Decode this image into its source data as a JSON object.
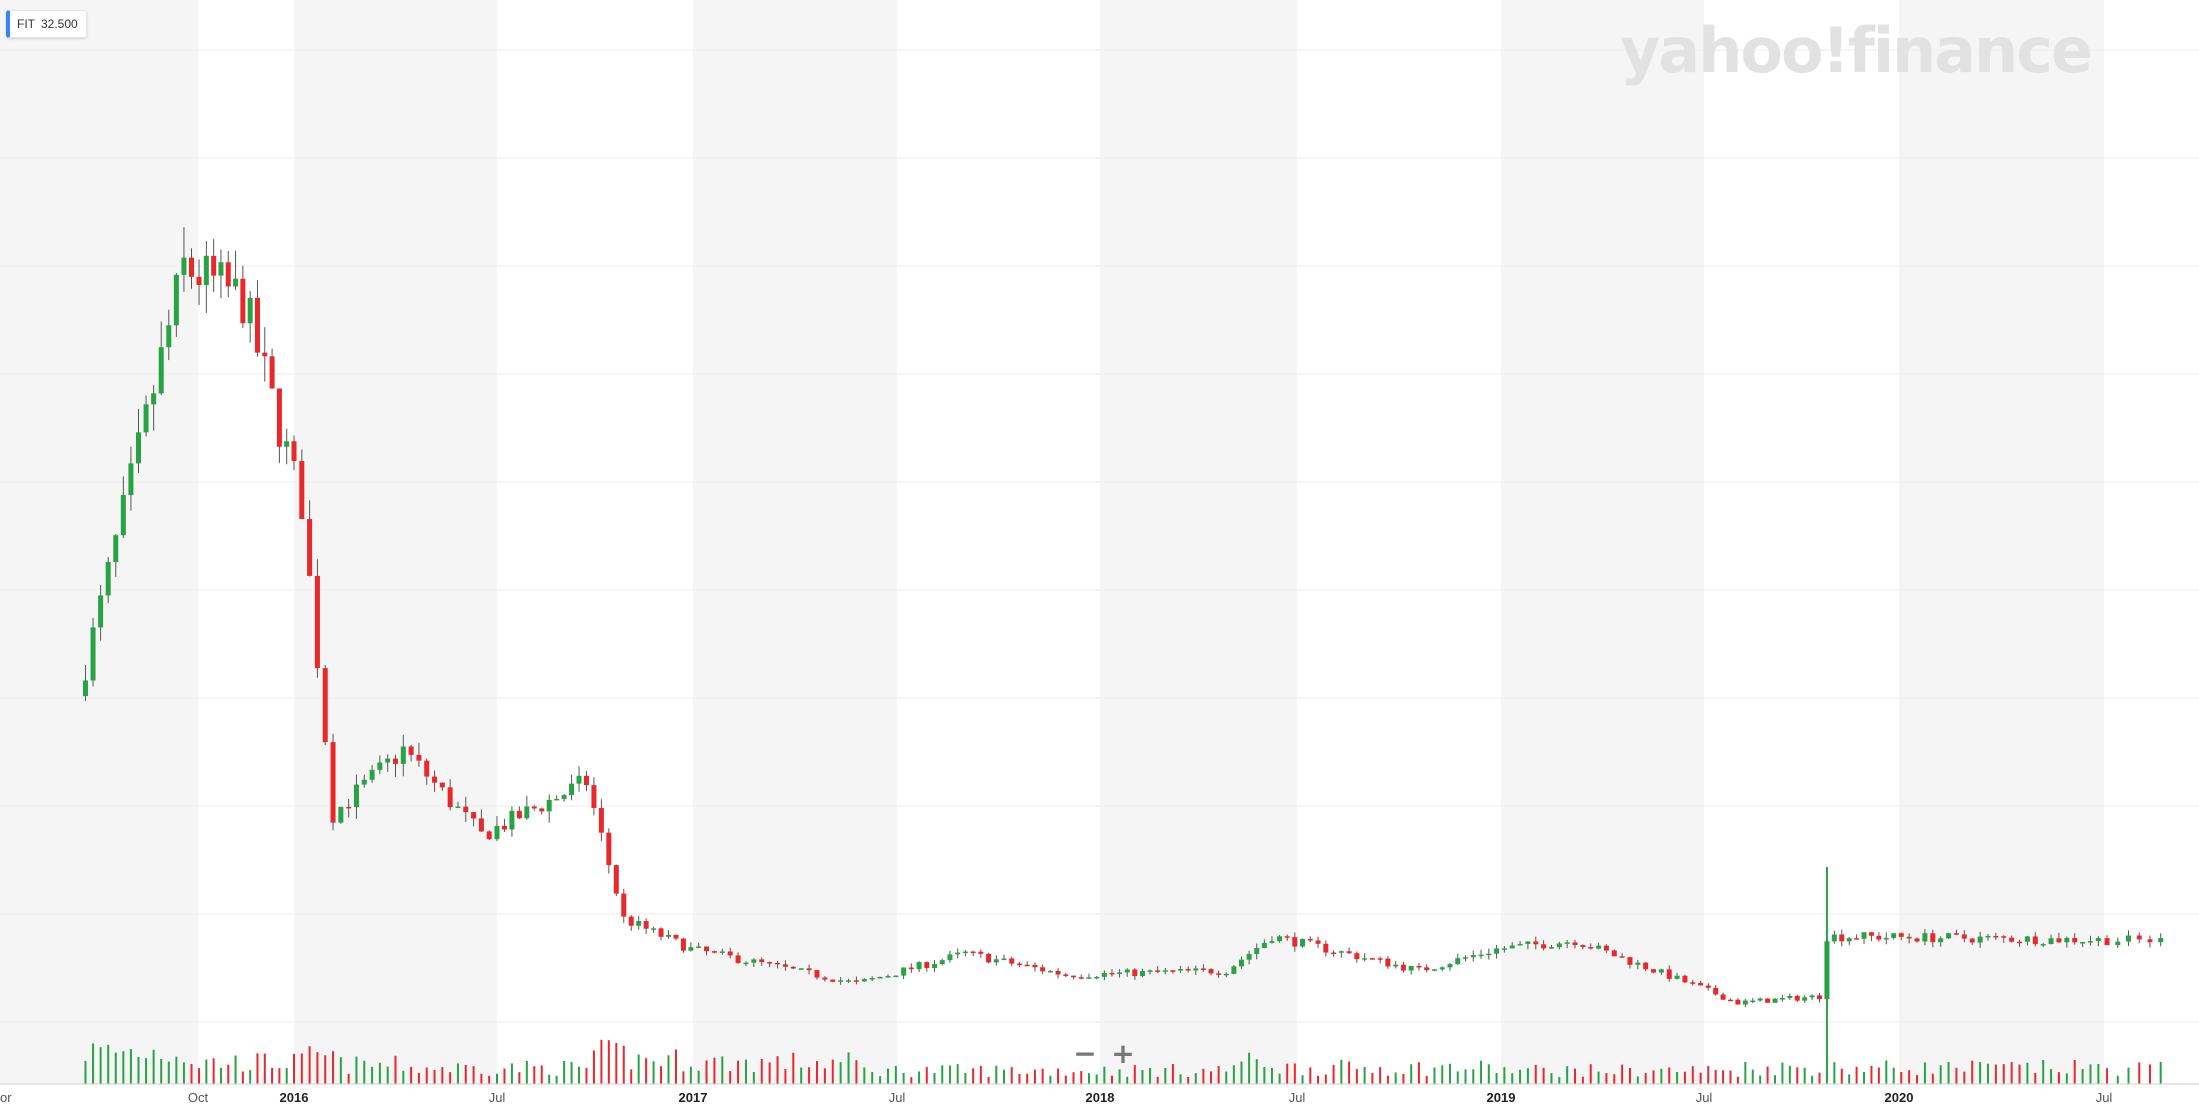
{
  "legend": {
    "symbol": "FIT",
    "price": "32.500"
  },
  "logo_text": "yahoo!finance",
  "zoom": {
    "minus": "−",
    "plus": "+"
  },
  "colors": {
    "up": "#27a345",
    "down": "#e8282b",
    "band": "#f5f5f5",
    "grid": "#eeeeee"
  },
  "chart_data": {
    "type": "candlestick",
    "interval": "weekly",
    "x_tick_labels": [
      "or",
      "Oct",
      "2016",
      "Jul",
      "2017",
      "Jul",
      "2018",
      "Jul",
      "2019",
      "Jul",
      "2020",
      "Jul"
    ],
    "x_tick_bold": [
      "2016",
      "2017",
      "2018",
      "2019",
      "2020"
    ],
    "y_tick_labels": [],
    "grid": true,
    "legend_position": "top-left",
    "segments": [
      {
        "from": "2015-06-19",
        "to": "2015-09-25",
        "start": 18.0,
        "end": 38.0,
        "vol": 0.6
      },
      {
        "from": "2015-09-25",
        "to": "2015-11-20",
        "start": 38.0,
        "end": 36.5,
        "vol": 0.4
      },
      {
        "from": "2015-11-20",
        "to": "2016-01-15",
        "start": 36.5,
        "end": 27.0,
        "vol": 0.4
      },
      {
        "from": "2016-01-15",
        "to": "2016-02-12",
        "start": 27.0,
        "end": 12.5,
        "vol": 0.5
      },
      {
        "from": "2016-02-12",
        "to": "2016-04-15",
        "start": 12.5,
        "end": 15.5,
        "vol": 0.35
      },
      {
        "from": "2016-04-15",
        "to": "2016-06-24",
        "start": 15.5,
        "end": 11.5,
        "vol": 0.3
      },
      {
        "from": "2016-06-24",
        "to": "2016-09-30",
        "start": 11.5,
        "end": 14.0,
        "vol": 0.3
      },
      {
        "from": "2016-09-30",
        "to": "2016-11-04",
        "start": 14.0,
        "end": 7.6,
        "vol": 0.55
      },
      {
        "from": "2016-11-04",
        "to": "2017-01-06",
        "start": 7.6,
        "end": 6.2,
        "vol": 0.45
      },
      {
        "from": "2017-01-06",
        "to": "2017-06-02",
        "start": 6.2,
        "end": 4.6,
        "vol": 0.4
      },
      {
        "from": "2017-06-02",
        "to": "2017-09-08",
        "start": 4.6,
        "end": 6.0,
        "vol": 0.25
      },
      {
        "from": "2017-09-08",
        "to": "2017-12-08",
        "start": 6.0,
        "end": 5.0,
        "vol": 0.25
      },
      {
        "from": "2017-12-08",
        "to": "2018-05-04",
        "start": 5.0,
        "end": 5.2,
        "vol": 0.25
      },
      {
        "from": "2018-05-04",
        "to": "2018-06-15",
        "start": 5.2,
        "end": 6.8,
        "vol": 0.4
      },
      {
        "from": "2018-06-15",
        "to": "2018-10-26",
        "start": 6.8,
        "end": 5.2,
        "vol": 0.3
      },
      {
        "from": "2018-10-26",
        "to": "2019-01-04",
        "start": 5.2,
        "end": 6.2,
        "vol": 0.3
      },
      {
        "from": "2019-01-04",
        "to": "2019-03-15",
        "start": 6.2,
        "end": 6.6,
        "vol": 0.25
      },
      {
        "from": "2019-03-15",
        "to": "2019-08-09",
        "start": 6.6,
        "end": 3.7,
        "vol": 0.25
      },
      {
        "from": "2019-08-09",
        "to": "2019-10-25",
        "start": 3.7,
        "end": 4.0,
        "vol": 0.3
      },
      {
        "from": "2019-10-25",
        "to": "2019-11-01",
        "start": 4.0,
        "end": 6.8,
        "vol": 1.0
      },
      {
        "from": "2019-11-01",
        "to": "2020-08-14",
        "start": 6.8,
        "end": 6.6,
        "vol": 0.3
      }
    ],
    "y_range": [
      0,
      50
    ]
  }
}
